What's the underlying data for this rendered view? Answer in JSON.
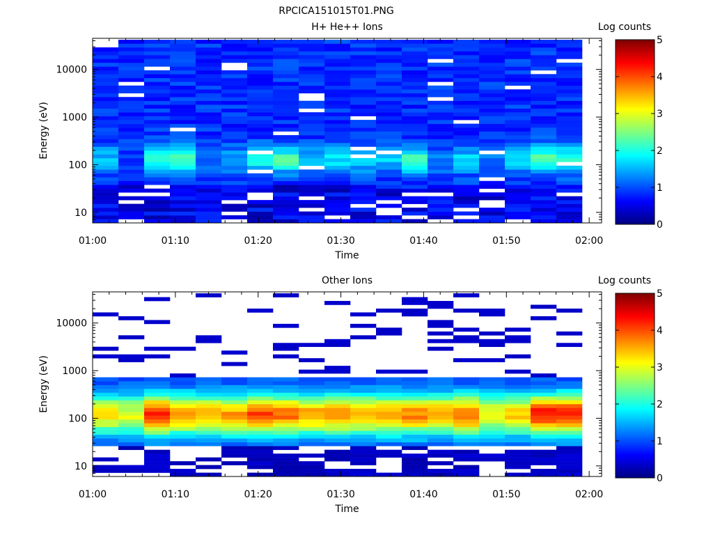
{
  "figure": {
    "title": "RPCICA151015T01.PNG"
  },
  "colormap": [
    "#00007f",
    "#0000ff",
    "#007fff",
    "#00ffff",
    "#7fff7f",
    "#ffff00",
    "#ff7f00",
    "#ff0000",
    "#7f0000"
  ],
  "chart_data": [
    {
      "type": "heatmap",
      "title": "H+ He++ Ions",
      "xlabel": "Time",
      "ylabel": "Energy (eV)",
      "x_tick_labels": [
        "01:00",
        "01:10",
        "01:20",
        "01:30",
        "01:40",
        "01:50",
        "02:00"
      ],
      "y_tick_labels": [
        "10",
        "100",
        "1000",
        "10000"
      ],
      "y_scale": "log",
      "ylim": [
        6,
        45000
      ],
      "xlim_minutes": [
        0,
        61.5
      ],
      "time_bins": 19,
      "bin_minutes": 3.2,
      "colorbar": {
        "label": "Log counts",
        "range": [
          0,
          5
        ],
        "tick_labels": [
          "0",
          "1",
          "2",
          "3",
          "4",
          "5"
        ]
      },
      "background_log_counts": 0.85,
      "peak_energy_eV": 130,
      "peak_log_counts_by_bin": [
        1.6,
        1.0,
        2.1,
        2.2,
        1.2,
        1.4,
        2.0,
        2.2,
        1.6,
        1.8,
        1.8,
        1.6,
        2.2,
        1.3,
        1.7,
        1.3,
        1.7,
        2.3,
        2.2
      ]
    },
    {
      "type": "heatmap",
      "title": "Other Ions",
      "xlabel": "Time",
      "ylabel": "Energy (eV)",
      "x_tick_labels": [
        "01:00",
        "01:10",
        "01:20",
        "01:30",
        "01:40",
        "01:50",
        "02:00"
      ],
      "y_tick_labels": [
        "10",
        "100",
        "1000",
        "10000"
      ],
      "y_scale": "log",
      "ylim": [
        6,
        45000
      ],
      "xlim_minutes": [
        0,
        61.5
      ],
      "time_bins": 19,
      "bin_minutes": 3.2,
      "colorbar": {
        "label": "Log counts",
        "range": [
          0,
          5
        ],
        "tick_labels": [
          "0",
          "1",
          "2",
          "3",
          "4",
          "5"
        ]
      },
      "dense_band_eV": [
        25,
        700
      ],
      "peak_energy_eV": 120,
      "peak_log_counts_by_bin": [
        3.2,
        3.0,
        4.3,
        3.7,
        3.6,
        3.6,
        4.0,
        3.8,
        3.6,
        3.7,
        3.6,
        3.7,
        3.7,
        3.6,
        3.9,
        3.1,
        3.4,
        4.3,
        4.3
      ]
    }
  ]
}
